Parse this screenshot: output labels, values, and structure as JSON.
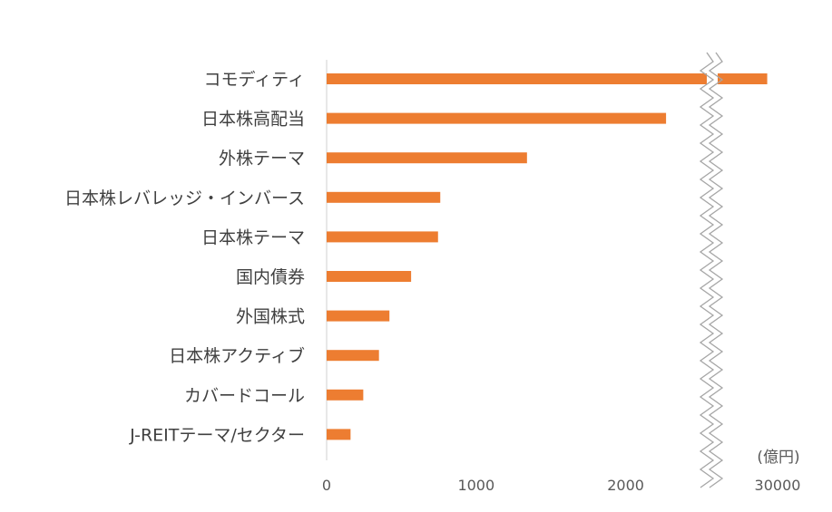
{
  "chart_data": {
    "type": "bar",
    "orientation": "horizontal",
    "axis_break": "between 2000 and 30000",
    "unit_label": "(億円)",
    "categories": [
      "コモディティ",
      "日本株高配当",
      "外株テーマ",
      "日本株レバレッジ・インバース",
      "日本株テーマ",
      "国内債券",
      "外国株式",
      "日本株アクティブ",
      "カバードコール",
      "J-REITテーマ/セクター"
    ],
    "values": [
      29600,
      2270,
      1340,
      760,
      745,
      565,
      420,
      350,
      245,
      160
    ],
    "xticks": [
      "0",
      "1000",
      "2000",
      "30000"
    ],
    "bar_color": "#ED7D31",
    "grid": false
  }
}
